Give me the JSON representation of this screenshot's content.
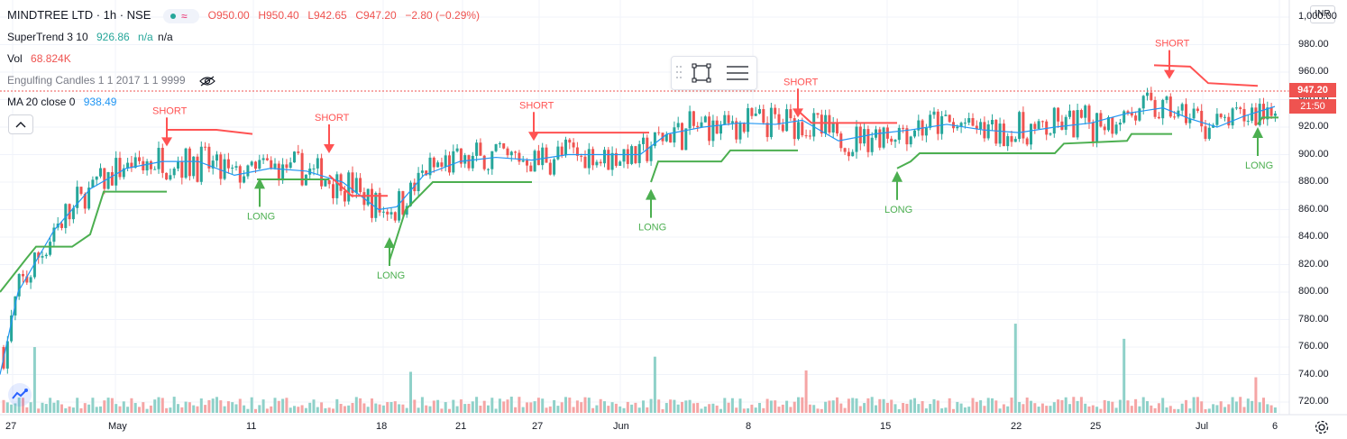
{
  "header": {
    "symbol": "MINDTREE LTD · 1h · NSE",
    "ohlc": {
      "o": "O950.00",
      "h": "H950.40",
      "l": "L942.65",
      "c": "C947.20",
      "chg": "−2.80 (−0.29%)"
    }
  },
  "indicators": {
    "supertrend": {
      "label": "SuperTrend 3 10",
      "value": "926.86",
      "n1": "n/a",
      "n2": "n/a"
    },
    "vol": {
      "label": "Vol",
      "value": "68.824K"
    },
    "engulfing": {
      "label": "Engulfing Candles 1 1 2017 1 1 9999"
    },
    "ma": {
      "label": "MA 20 close 0",
      "value": "938.49"
    }
  },
  "currency_button": "INR",
  "price_tags": {
    "last_price": "947.20",
    "countdown": "21:50"
  },
  "colors": {
    "up": "#26a69a",
    "down": "#ef5350",
    "supertrend_up": "#4caf50",
    "supertrend_down": "#ff5252",
    "ma": "#2196f3",
    "vol_up": "#8fd1c9",
    "vol_down": "#f5a5a5"
  },
  "icons": [
    "eye-off-icon",
    "collapse-chevron-icon",
    "select-box-icon",
    "settings-lines-icon",
    "tradingview-logo-icon",
    "gear-icon"
  ],
  "chart_data": {
    "type": "candlestick",
    "y_axis": {
      "ticks": [
        "1,000.00",
        "980.00",
        "960.00",
        "940.00",
        "920.00",
        "900.00",
        "880.00",
        "860.00",
        "840.00",
        "820.00",
        "800.00",
        "780.00",
        "760.00",
        "740.00",
        "720.00"
      ],
      "range": [
        710,
        1000
      ]
    },
    "x_axis": {
      "ticks": [
        "27",
        "May",
        "11",
        "18",
        "21",
        "27",
        "Jun",
        "8",
        "15",
        "22",
        "25",
        "Jul",
        "6"
      ]
    },
    "ma20_points": [
      [
        0,
        740
      ],
      [
        20,
        800
      ],
      [
        60,
        845
      ],
      [
        100,
        875
      ],
      [
        140,
        890
      ],
      [
        180,
        895
      ],
      [
        220,
        895
      ],
      [
        260,
        885
      ],
      [
        300,
        890
      ],
      [
        340,
        888
      ],
      [
        380,
        880
      ],
      [
        420,
        860
      ],
      [
        440,
        862
      ],
      [
        470,
        885
      ],
      [
        510,
        895
      ],
      [
        550,
        898
      ],
      [
        590,
        896
      ],
      [
        630,
        900
      ],
      [
        670,
        900
      ],
      [
        710,
        900
      ],
      [
        740,
        915
      ],
      [
        780,
        920
      ],
      [
        820,
        923
      ],
      [
        860,
        922
      ],
      [
        890,
        925
      ],
      [
        930,
        910
      ],
      [
        970,
        915
      ],
      [
        1010,
        918
      ],
      [
        1050,
        922
      ],
      [
        1090,
        918
      ],
      [
        1130,
        916
      ],
      [
        1170,
        920
      ],
      [
        1210,
        923
      ],
      [
        1250,
        930
      ],
      [
        1290,
        934
      ],
      [
        1320,
        926
      ],
      [
        1350,
        920
      ],
      [
        1380,
        928
      ],
      [
        1414,
        935
      ]
    ],
    "supertrend_segments": [
      {
        "dir": "up",
        "points": [
          [
            0,
            800
          ],
          [
            30,
            825
          ],
          [
            40,
            833
          ],
          [
            80,
            833
          ],
          [
            100,
            842
          ],
          [
            115,
            873
          ],
          [
            185,
            873
          ]
        ]
      },
      {
        "dir": "down",
        "points": [
          [
            185,
            918
          ],
          [
            240,
            918
          ],
          [
            280,
            915
          ]
        ]
      },
      {
        "dir": "up",
        "points": [
          [
            285,
            882
          ],
          [
            365,
            882
          ]
        ]
      },
      {
        "dir": "down",
        "points": [
          [
            365,
            885
          ],
          [
            390,
            870
          ],
          [
            430,
            870
          ]
        ]
      },
      {
        "dir": "up",
        "points": [
          [
            432,
            823
          ],
          [
            450,
            860
          ],
          [
            480,
            880
          ],
          [
            590,
            880
          ]
        ]
      },
      {
        "dir": "down",
        "points": [
          [
            592,
            916
          ],
          [
            720,
            916
          ]
        ]
      },
      {
        "dir": "up",
        "points": [
          [
            722,
            880
          ],
          [
            730,
            895
          ],
          [
            800,
            895
          ],
          [
            810,
            903
          ],
          [
            885,
            903
          ]
        ]
      },
      {
        "dir": "down",
        "points": [
          [
            885,
            932
          ],
          [
            900,
            923
          ],
          [
            995,
            923
          ]
        ]
      },
      {
        "dir": "up",
        "points": [
          [
            995,
            890
          ],
          [
            1010,
            895
          ],
          [
            1020,
            901
          ],
          [
            1170,
            901
          ],
          [
            1180,
            908
          ],
          [
            1250,
            910
          ],
          [
            1255,
            915
          ],
          [
            1300,
            915
          ]
        ]
      },
      {
        "dir": "down",
        "points": [
          [
            1280,
            965
          ],
          [
            1320,
            964
          ],
          [
            1340,
            952
          ],
          [
            1395,
            950
          ]
        ]
      },
      {
        "dir": "up",
        "points": [
          [
            1395,
            922
          ],
          [
            1400,
            927
          ],
          [
            1418,
            927
          ]
        ]
      }
    ],
    "signals": [
      {
        "type": "SHORT",
        "x": 185,
        "price": 906
      },
      {
        "type": "LONG",
        "x": 288,
        "price": 883
      },
      {
        "type": "SHORT",
        "x": 365,
        "price": 901
      },
      {
        "type": "LONG",
        "x": 432,
        "price": 840
      },
      {
        "type": "SHORT",
        "x": 592,
        "price": 910
      },
      {
        "type": "LONG",
        "x": 722,
        "price": 875
      },
      {
        "type": "SHORT",
        "x": 885,
        "price": 927
      },
      {
        "type": "LONG",
        "x": 995,
        "price": 888
      },
      {
        "type": "SHORT",
        "x": 1297,
        "price": 955
      },
      {
        "type": "LONG",
        "x": 1395,
        "price": 920
      }
    ],
    "volume_spikes": [
      [
        40,
        760
      ],
      [
        455,
        742
      ],
      [
        725,
        753
      ],
      [
        895,
        743
      ],
      [
        1125,
        777
      ],
      [
        1247,
        766
      ],
      [
        1393,
        738
      ]
    ]
  }
}
